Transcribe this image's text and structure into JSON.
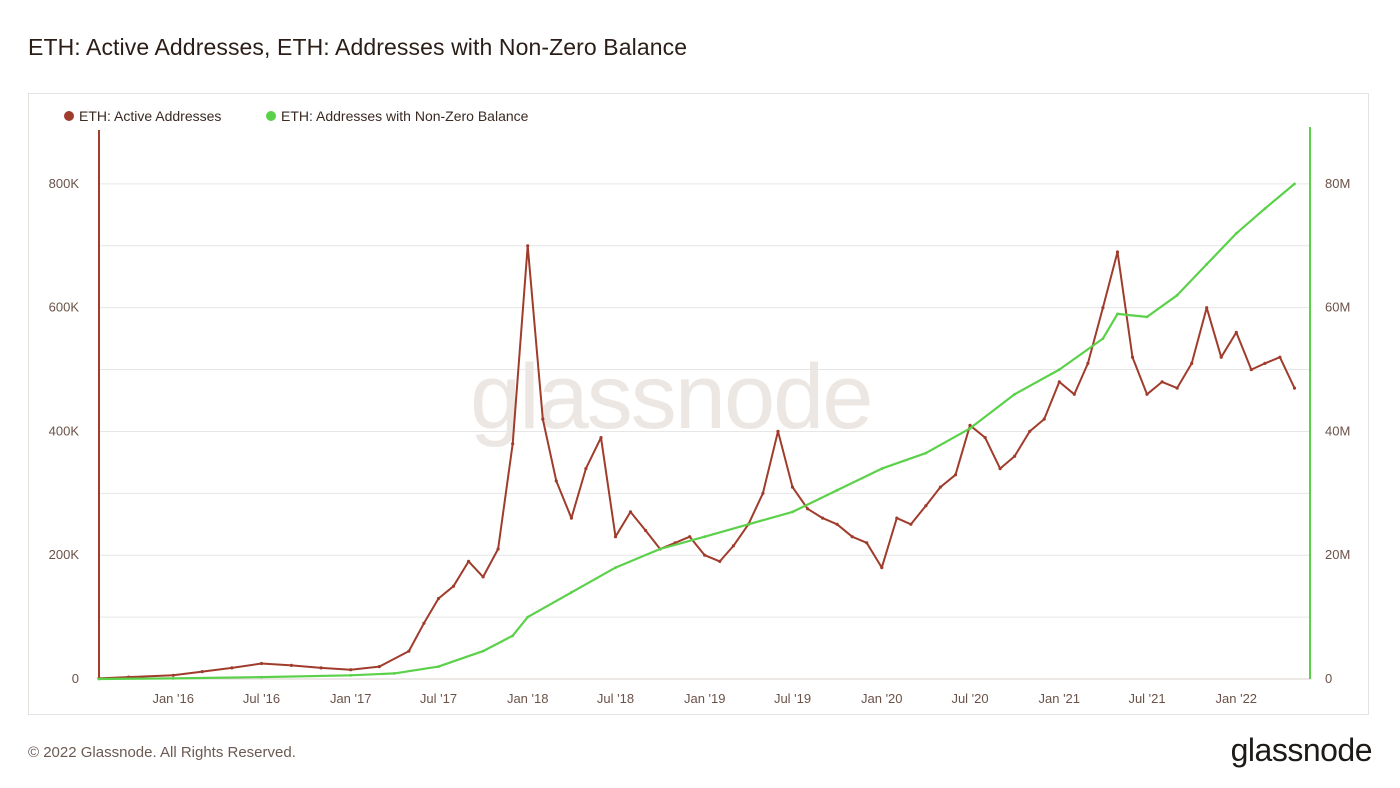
{
  "header": {
    "title": "ETH: Active Addresses, ETH: Addresses with Non-Zero Balance"
  },
  "footer": {
    "copyright": "© 2022 Glassnode. All Rights Reserved.",
    "logo": "glassnode"
  },
  "watermark": "glassnode",
  "colors": {
    "active": "#a03c2c",
    "nonzero": "#5bd14a",
    "grid": "#e6e6e6",
    "tick": "#6b5248"
  },
  "chart_data": {
    "type": "line",
    "title": "ETH: Active Addresses, ETH: Addresses with Non-Zero Balance",
    "legend_position": "top-left",
    "grid": true,
    "x_ticks": [
      "Jan '16",
      "Jul '16",
      "Jan '17",
      "Jul '17",
      "Jan '18",
      "Jul '18",
      "Jan '19",
      "Jul '19",
      "Jan '20",
      "Jul '20",
      "Jan '21",
      "Jul '21",
      "Jan '22"
    ],
    "left_axis": {
      "ticks": [
        "0",
        "200K",
        "400K",
        "600K",
        "800K"
      ],
      "ylim": [
        0,
        900000
      ]
    },
    "right_axis": {
      "ticks": [
        "0",
        "20M",
        "40M",
        "60M",
        "80M"
      ],
      "ylim": [
        0,
        90000000
      ]
    },
    "series": [
      {
        "name": "ETH: Active Addresses",
        "axis": "left",
        "x": [
          "2015-08",
          "2015-10",
          "2016-01",
          "2016-03",
          "2016-05",
          "2016-07",
          "2016-09",
          "2016-11",
          "2017-01",
          "2017-03",
          "2017-05",
          "2017-06",
          "2017-07",
          "2017-08",
          "2017-09",
          "2017-10",
          "2017-11",
          "2017-12",
          "2018-01",
          "2018-02",
          "2018-03",
          "2018-04",
          "2018-05",
          "2018-06",
          "2018-07",
          "2018-08",
          "2018-09",
          "2018-10",
          "2018-11",
          "2018-12",
          "2019-01",
          "2019-02",
          "2019-03",
          "2019-04",
          "2019-05",
          "2019-06",
          "2019-07",
          "2019-08",
          "2019-09",
          "2019-10",
          "2019-11",
          "2019-12",
          "2020-01",
          "2020-02",
          "2020-03",
          "2020-04",
          "2020-05",
          "2020-06",
          "2020-07",
          "2020-08",
          "2020-09",
          "2020-10",
          "2020-11",
          "2020-12",
          "2021-01",
          "2021-02",
          "2021-03",
          "2021-04",
          "2021-05",
          "2021-06",
          "2021-07",
          "2021-08",
          "2021-09",
          "2021-10",
          "2021-11",
          "2021-12",
          "2022-01",
          "2022-02",
          "2022-03",
          "2022-04",
          "2022-05"
        ],
        "values": [
          1000,
          3000,
          6000,
          12000,
          18000,
          25000,
          22000,
          18000,
          15000,
          20000,
          45000,
          90000,
          130000,
          150000,
          190000,
          165000,
          210000,
          380000,
          700000,
          420000,
          320000,
          260000,
          340000,
          390000,
          230000,
          270000,
          240000,
          210000,
          220000,
          230000,
          200000,
          190000,
          215000,
          250000,
          300000,
          400000,
          310000,
          275000,
          260000,
          250000,
          230000,
          220000,
          180000,
          260000,
          250000,
          280000,
          310000,
          330000,
          410000,
          390000,
          340000,
          360000,
          400000,
          420000,
          480000,
          460000,
          510000,
          600000,
          690000,
          520000,
          460000,
          480000,
          470000,
          510000,
          600000,
          520000,
          560000,
          500000,
          510000,
          520000,
          470000
        ]
      },
      {
        "name": "ETH: Addresses with Non-Zero Balance",
        "axis": "right",
        "x": [
          "2015-08",
          "2016-01",
          "2016-07",
          "2017-01",
          "2017-04",
          "2017-07",
          "2017-10",
          "2017-12",
          "2018-01",
          "2018-04",
          "2018-07",
          "2018-10",
          "2019-01",
          "2019-04",
          "2019-07",
          "2019-10",
          "2020-01",
          "2020-04",
          "2020-07",
          "2020-10",
          "2021-01",
          "2021-04",
          "2021-05",
          "2021-07",
          "2021-09",
          "2021-11",
          "2022-01",
          "2022-03",
          "2022-05"
        ],
        "values": [
          0,
          100000,
          300000,
          600000,
          900000,
          2000000,
          4500000,
          7000000,
          10000000,
          14000000,
          18000000,
          21000000,
          23000000,
          25000000,
          27000000,
          30500000,
          34000000,
          36500000,
          40500000,
          46000000,
          50000000,
          55000000,
          59000000,
          58500000,
          62000000,
          67000000,
          72000000,
          76000000,
          80000000
        ]
      }
    ]
  }
}
